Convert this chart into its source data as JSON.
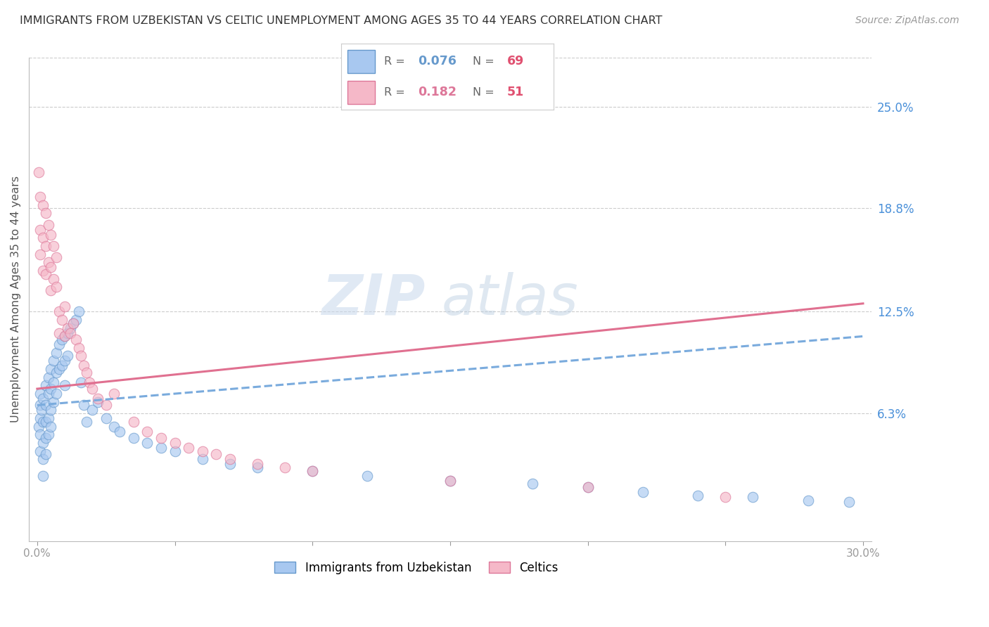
{
  "title": "IMMIGRANTS FROM UZBEKISTAN VS CELTIC UNEMPLOYMENT AMONG AGES 35 TO 44 YEARS CORRELATION CHART",
  "source": "Source: ZipAtlas.com",
  "ylabel": "Unemployment Among Ages 35 to 44 years",
  "xlim": [
    0.0,
    0.3
  ],
  "ylim": [
    -0.015,
    0.28
  ],
  "ytick_labels_right": [
    "6.3%",
    "12.5%",
    "18.8%",
    "25.0%"
  ],
  "ytick_values_right": [
    0.063,
    0.125,
    0.188,
    0.25
  ],
  "series1_name": "Immigrants from Uzbekistan",
  "series1_R": 0.076,
  "series1_N": 69,
  "series1_color": "#a8c8f0",
  "series1_edge_color": "#6699cc",
  "series1_trend_color": "#7aabdd",
  "series2_name": "Celtics",
  "series2_R": 0.182,
  "series2_N": 51,
  "series2_color": "#f5b8c8",
  "series2_edge_color": "#dd7799",
  "series2_trend_color": "#e07090",
  "watermark_zip": "ZIP",
  "watermark_atlas": "atlas",
  "background_color": "#ffffff",
  "grid_color": "#cccccc",
  "title_color": "#333333",
  "right_label_color": "#4a90d9",
  "series1_x": [
    0.0005,
    0.001,
    0.001,
    0.001,
    0.001,
    0.001,
    0.0015,
    0.002,
    0.002,
    0.002,
    0.002,
    0.002,
    0.003,
    0.003,
    0.003,
    0.003,
    0.003,
    0.004,
    0.004,
    0.004,
    0.004,
    0.005,
    0.005,
    0.005,
    0.005,
    0.006,
    0.006,
    0.006,
    0.007,
    0.007,
    0.007,
    0.008,
    0.008,
    0.009,
    0.009,
    0.01,
    0.01,
    0.01,
    0.011,
    0.011,
    0.012,
    0.013,
    0.014,
    0.015,
    0.016,
    0.017,
    0.018,
    0.02,
    0.022,
    0.025,
    0.028,
    0.03,
    0.035,
    0.04,
    0.045,
    0.05,
    0.06,
    0.07,
    0.08,
    0.1,
    0.12,
    0.15,
    0.18,
    0.2,
    0.22,
    0.24,
    0.26,
    0.28,
    0.295
  ],
  "series1_y": [
    0.055,
    0.06,
    0.075,
    0.068,
    0.05,
    0.04,
    0.065,
    0.072,
    0.058,
    0.045,
    0.035,
    0.025,
    0.08,
    0.068,
    0.058,
    0.048,
    0.038,
    0.085,
    0.075,
    0.06,
    0.05,
    0.09,
    0.078,
    0.065,
    0.055,
    0.095,
    0.082,
    0.07,
    0.1,
    0.088,
    0.075,
    0.105,
    0.09,
    0.108,
    0.092,
    0.11,
    0.095,
    0.08,
    0.112,
    0.098,
    0.115,
    0.118,
    0.12,
    0.125,
    0.082,
    0.068,
    0.058,
    0.065,
    0.07,
    0.06,
    0.055,
    0.052,
    0.048,
    0.045,
    0.042,
    0.04,
    0.035,
    0.032,
    0.03,
    0.028,
    0.025,
    0.022,
    0.02,
    0.018,
    0.015,
    0.013,
    0.012,
    0.01,
    0.009
  ],
  "series2_x": [
    0.0005,
    0.001,
    0.001,
    0.001,
    0.002,
    0.002,
    0.002,
    0.003,
    0.003,
    0.003,
    0.004,
    0.004,
    0.005,
    0.005,
    0.005,
    0.006,
    0.006,
    0.007,
    0.007,
    0.008,
    0.008,
    0.009,
    0.01,
    0.01,
    0.011,
    0.012,
    0.013,
    0.014,
    0.015,
    0.016,
    0.017,
    0.018,
    0.019,
    0.02,
    0.022,
    0.025,
    0.028,
    0.035,
    0.04,
    0.045,
    0.05,
    0.055,
    0.06,
    0.065,
    0.07,
    0.08,
    0.09,
    0.1,
    0.15,
    0.2,
    0.25
  ],
  "series2_y": [
    0.21,
    0.195,
    0.175,
    0.16,
    0.19,
    0.17,
    0.15,
    0.185,
    0.165,
    0.148,
    0.178,
    0.155,
    0.172,
    0.152,
    0.138,
    0.165,
    0.145,
    0.158,
    0.14,
    0.125,
    0.112,
    0.12,
    0.128,
    0.11,
    0.115,
    0.112,
    0.118,
    0.108,
    0.103,
    0.098,
    0.092,
    0.088,
    0.082,
    0.078,
    0.072,
    0.068,
    0.075,
    0.058,
    0.052,
    0.048,
    0.045,
    0.042,
    0.04,
    0.038,
    0.035,
    0.032,
    0.03,
    0.028,
    0.022,
    0.018,
    0.012
  ],
  "trend1_x0": 0.0,
  "trend1_y0": 0.068,
  "trend1_x1": 0.3,
  "trend1_y1": 0.11,
  "trend2_x0": 0.0,
  "trend2_y0": 0.078,
  "trend2_x1": 0.3,
  "trend2_y1": 0.13
}
